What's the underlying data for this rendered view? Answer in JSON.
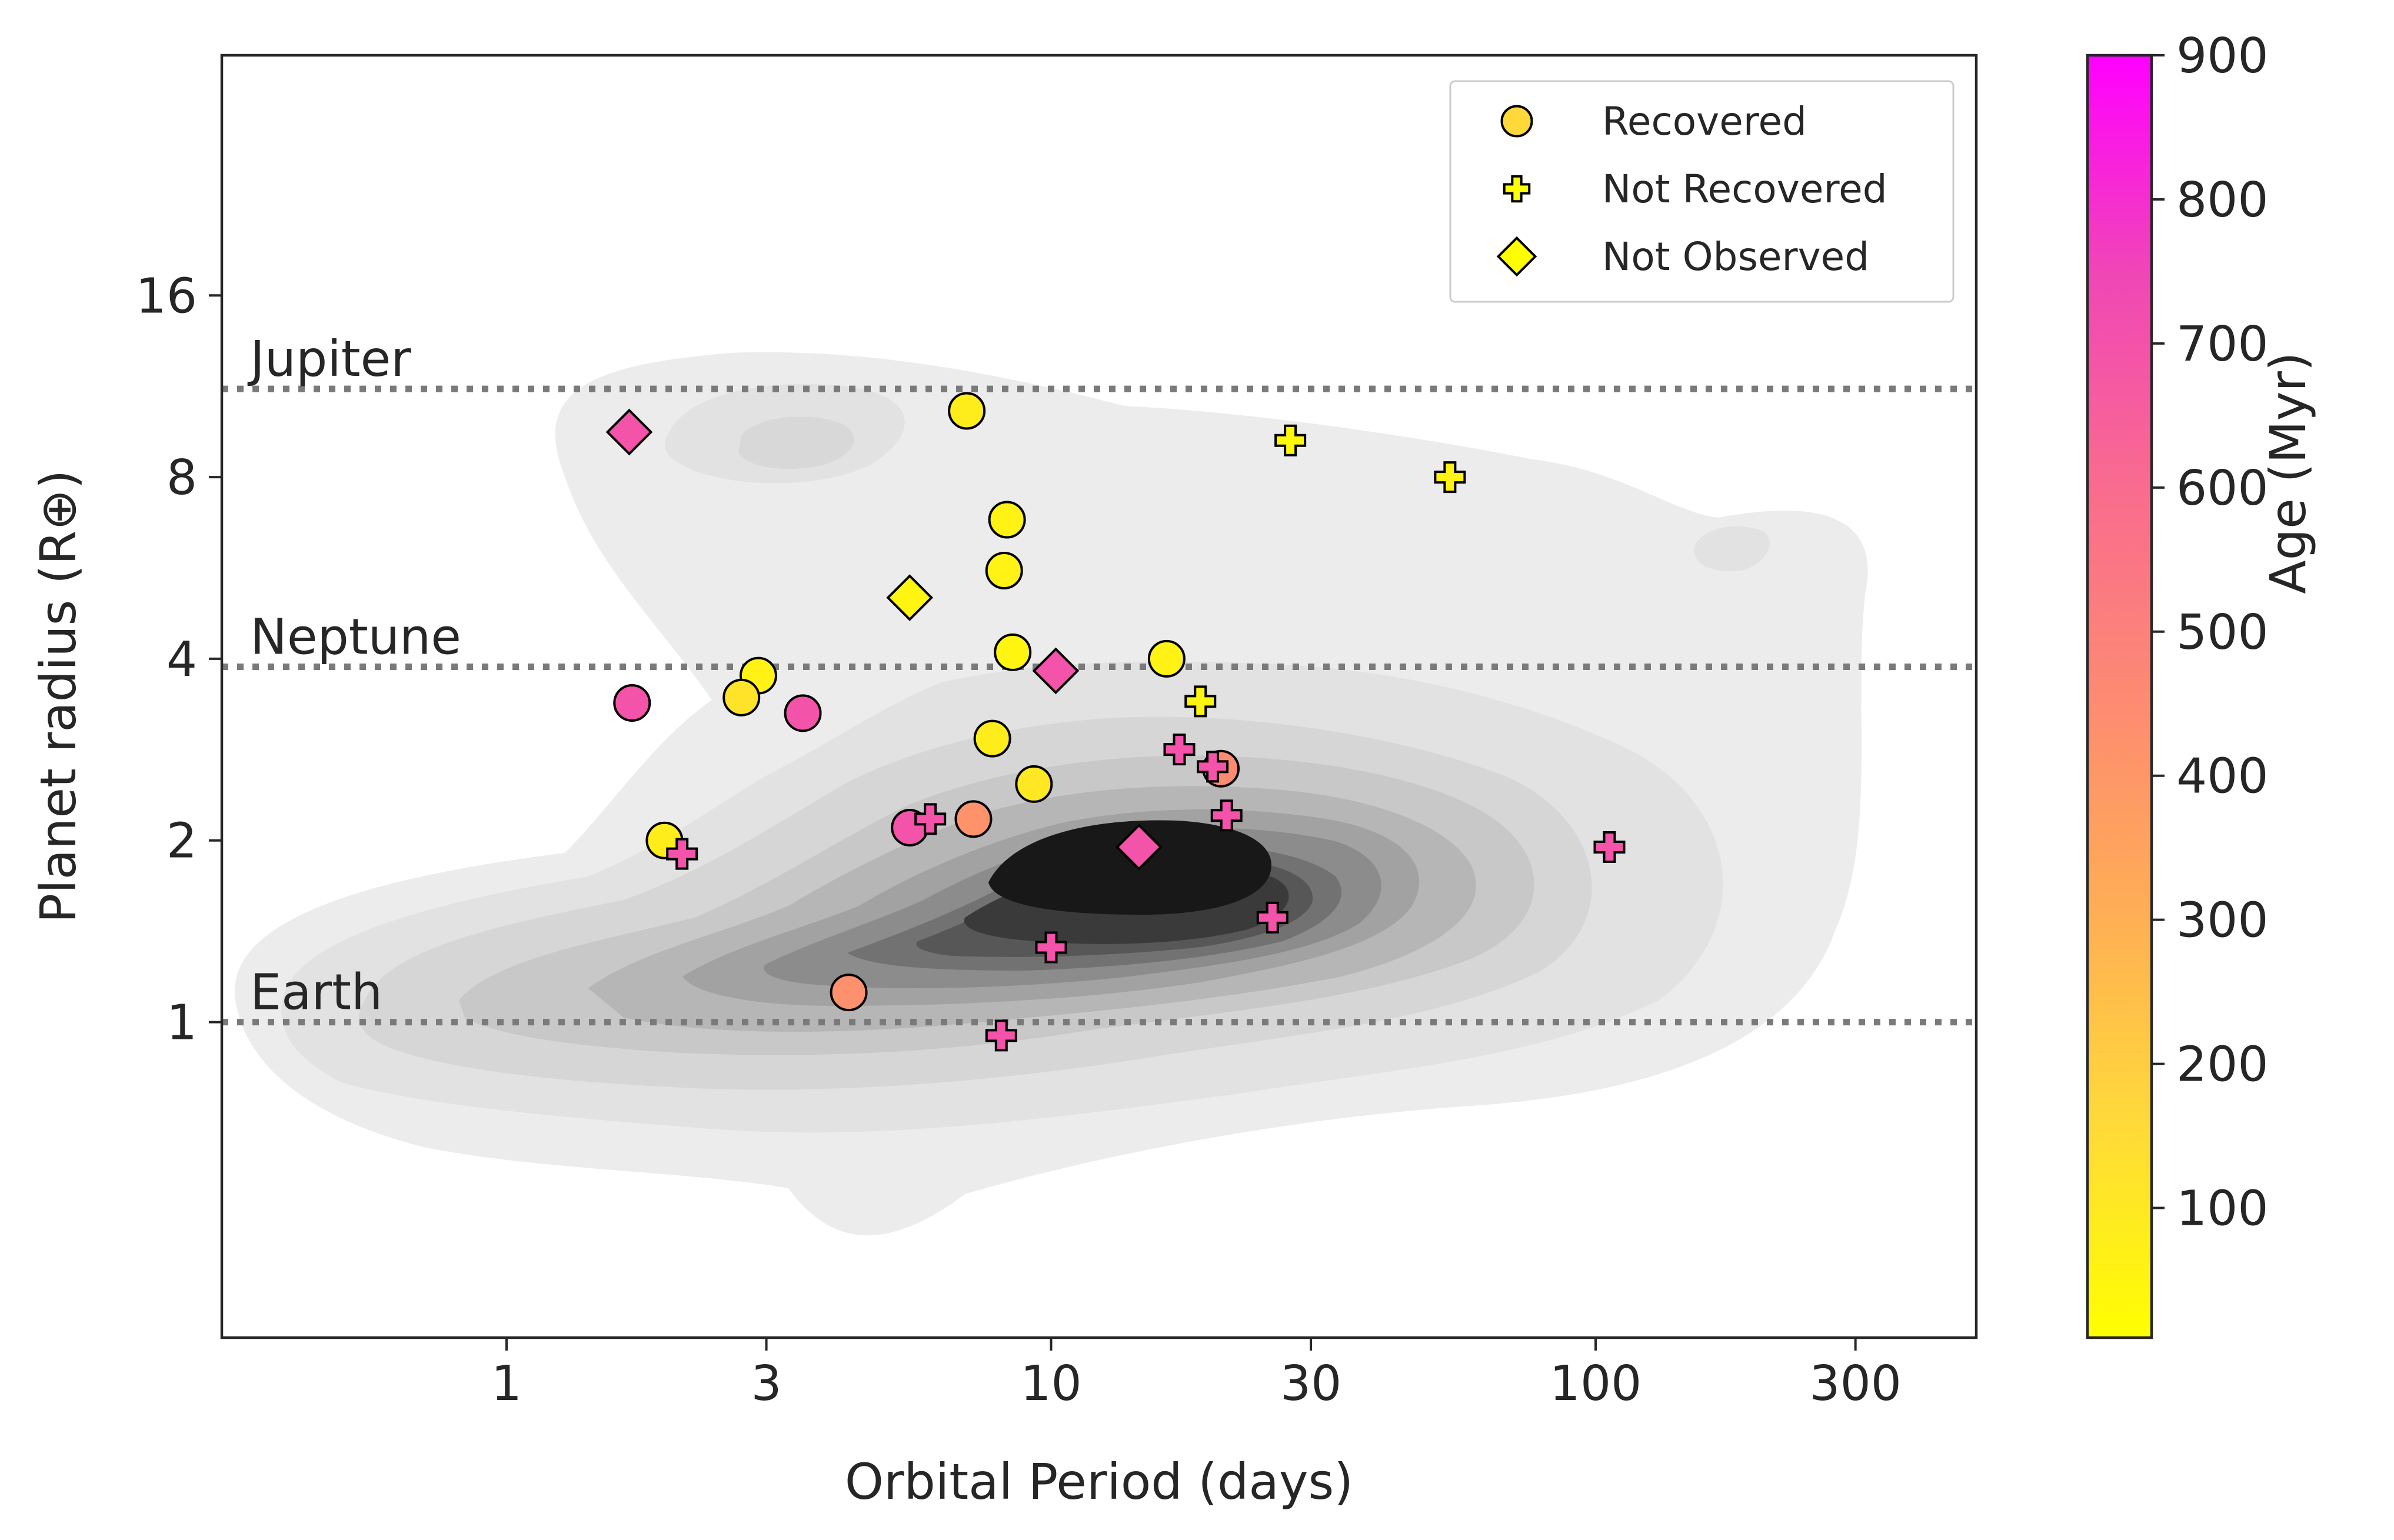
{
  "chart_data": {
    "type": "scatter",
    "xlabel": "Orbital Period (days)",
    "ylabel": "Planet radius (R⊕)",
    "x_scale": "log",
    "y_scale": "log",
    "xlim": [
      0.3,
      500
    ],
    "ylim": [
      0.3,
      40
    ],
    "x_ticks": [
      1,
      3,
      10,
      30,
      100,
      300
    ],
    "x_tick_labels": [
      "1",
      "3",
      "10",
      "30",
      "100",
      "300"
    ],
    "y_ticks": [
      1,
      2,
      4,
      8,
      16
    ],
    "y_tick_labels": [
      "1",
      "2",
      "4",
      "8",
      "16"
    ],
    "reference_lines": [
      {
        "label": "Jupiter",
        "y": 11.2
      },
      {
        "label": "Neptune",
        "y": 3.88
      },
      {
        "label": "Earth",
        "y": 1.0
      }
    ],
    "legend": {
      "placement": "upper right",
      "entries": [
        {
          "label": "Recovered",
          "marker": "circle"
        },
        {
          "label": "Not Recovered",
          "marker": "plus"
        },
        {
          "label": "Not Observed",
          "marker": "diamond"
        }
      ]
    },
    "colorbar": {
      "label": "Age (Myr)",
      "range": [
        10,
        900
      ],
      "ticks": [
        100,
        200,
        300,
        400,
        500,
        600,
        700,
        800,
        900
      ],
      "colors": [
        "#ffff00",
        "#ffd93a",
        "#ffae55",
        "#fd8a72",
        "#f96a90",
        "#f046b6",
        "#ff00ff"
      ]
    },
    "background_density": {
      "description": "KDE of known planet population",
      "shading": "greyscale"
    },
    "series": [
      {
        "name": "Recovered",
        "marker": "circle",
        "points": [
          {
            "x": 7.0,
            "y": 10.3,
            "age": 80
          },
          {
            "x": 8.3,
            "y": 6.8,
            "age": 60
          },
          {
            "x": 8.2,
            "y": 5.6,
            "age": 60
          },
          {
            "x": 8.5,
            "y": 4.1,
            "age": 50
          },
          {
            "x": 16.3,
            "y": 4.0,
            "age": 60
          },
          {
            "x": 2.9,
            "y": 3.75,
            "age": 60
          },
          {
            "x": 2.7,
            "y": 3.45,
            "age": 120
          },
          {
            "x": 7.8,
            "y": 2.95,
            "age": 80
          },
          {
            "x": 9.3,
            "y": 2.48,
            "age": 100
          },
          {
            "x": 1.95,
            "y": 2.0,
            "age": 80
          },
          {
            "x": 20.5,
            "y": 2.63,
            "age": 450
          },
          {
            "x": 7.2,
            "y": 2.17,
            "age": 420
          },
          {
            "x": 4.25,
            "y": 1.12,
            "age": 430
          },
          {
            "x": 1.7,
            "y": 3.38,
            "age": 700
          },
          {
            "x": 3.5,
            "y": 3.25,
            "age": 700
          },
          {
            "x": 5.5,
            "y": 2.1,
            "age": 700
          }
        ]
      },
      {
        "name": "Not Recovered",
        "marker": "plus",
        "points": [
          {
            "x": 27.5,
            "y": 9.2,
            "age": 40
          },
          {
            "x": 54.0,
            "y": 8.0,
            "age": 60
          },
          {
            "x": 18.8,
            "y": 3.4,
            "age": 50
          },
          {
            "x": 17.2,
            "y": 2.83,
            "age": 700
          },
          {
            "x": 19.8,
            "y": 2.65,
            "age": 700
          },
          {
            "x": 21.0,
            "y": 2.2,
            "age": 700
          },
          {
            "x": 2.1,
            "y": 1.9,
            "age": 700
          },
          {
            "x": 6.0,
            "y": 2.17,
            "age": 700
          },
          {
            "x": 10.0,
            "y": 1.33,
            "age": 700
          },
          {
            "x": 25.5,
            "y": 1.49,
            "age": 700
          },
          {
            "x": 8.1,
            "y": 0.95,
            "age": 700
          },
          {
            "x": 106.0,
            "y": 1.95,
            "age": 700
          }
        ]
      },
      {
        "name": "Not Observed",
        "marker": "diamond",
        "points": [
          {
            "x": 1.68,
            "y": 9.5,
            "age": 700
          },
          {
            "x": 5.5,
            "y": 5.05,
            "age": 50
          },
          {
            "x": 10.2,
            "y": 3.82,
            "age": 700
          },
          {
            "x": 14.5,
            "y": 1.95,
            "age": 700
          }
        ]
      }
    ]
  }
}
